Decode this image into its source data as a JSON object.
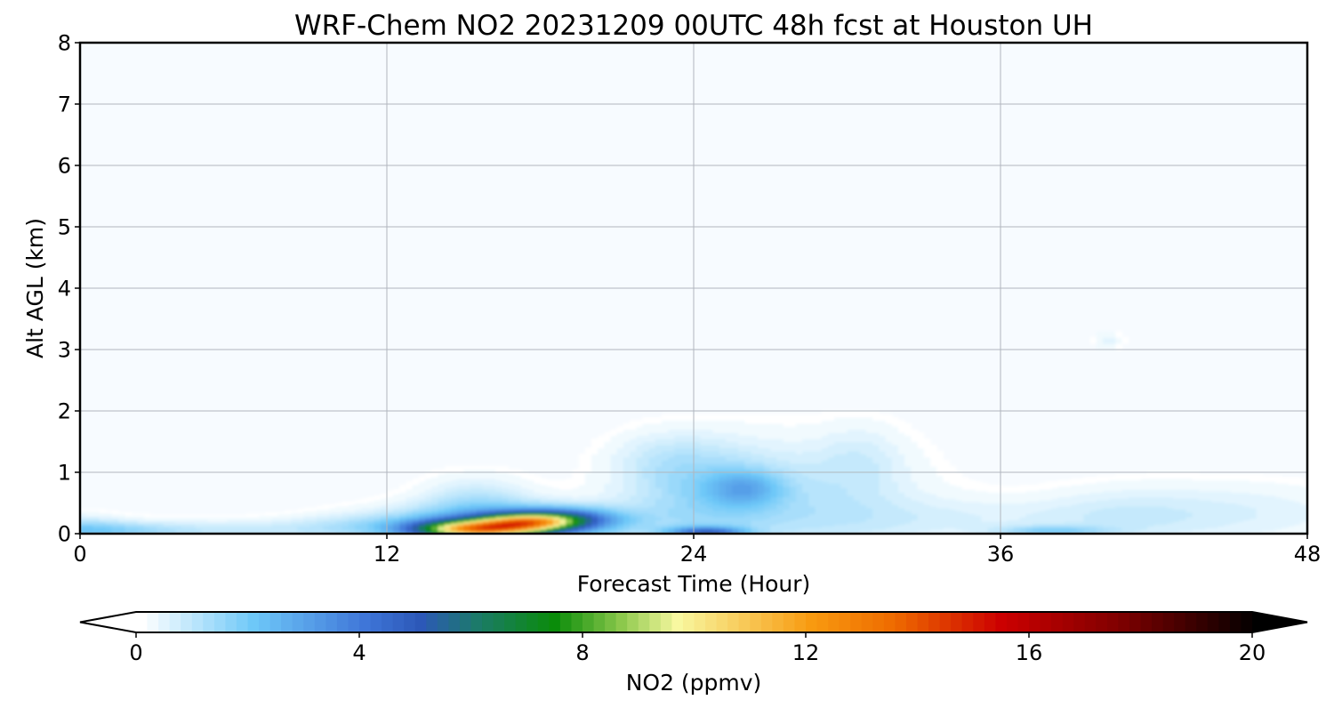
{
  "chart_data": {
    "type": "heatmap",
    "subtype": "time-height filled contour",
    "title": "WRF-Chem NO2  20231209 00UTC 48h fcst at Houston UH",
    "xlabel": "Forecast Time (Hour)",
    "ylabel": "Alt AGL (km)",
    "xlim": [
      0,
      48
    ],
    "ylim": [
      0,
      8
    ],
    "xticks": [
      0,
      12,
      24,
      36,
      48
    ],
    "yticks": [
      0,
      1,
      2,
      3,
      4,
      5,
      6,
      7,
      8
    ],
    "grid": true,
    "colorbar": {
      "label": "NO2  (ppmv)",
      "vmin": 0,
      "vmax": 20,
      "ticks": [
        0,
        4,
        8,
        12,
        16,
        20
      ],
      "extend": "both",
      "levels": 100,
      "stops": [
        {
          "v": 0,
          "c": "#ffffff"
        },
        {
          "v": 2,
          "c": "#6ec8f8"
        },
        {
          "v": 4,
          "c": "#3f76d8"
        },
        {
          "v": 5,
          "c": "#2c58b8"
        },
        {
          "v": 6,
          "c": "#1c7a6a"
        },
        {
          "v": 7.4,
          "c": "#0a8c0a"
        },
        {
          "v": 8.6,
          "c": "#8cc84c"
        },
        {
          "v": 9.6,
          "c": "#f8f8a0"
        },
        {
          "v": 12,
          "c": "#f89a10"
        },
        {
          "v": 13.5,
          "c": "#ee6a00"
        },
        {
          "v": 15.4,
          "c": "#cc0000"
        },
        {
          "v": 17.5,
          "c": "#800000"
        },
        {
          "v": 20,
          "c": "#000000"
        }
      ]
    },
    "features": [
      {
        "t": 0,
        "z": 0.05,
        "st": 2.5,
        "sz": 0.1,
        "v": 1.6
      },
      {
        "t": 0,
        "z": 0.2,
        "st": 1.2,
        "sz": 0.12,
        "v": 0.5
      },
      {
        "t": 7,
        "z": 0.06,
        "st": 5.5,
        "sz": 0.12,
        "v": 0.8
      },
      {
        "t": 11,
        "z": 0.18,
        "st": 2.0,
        "sz": 0.12,
        "v": 0.4
      },
      {
        "t": 15.5,
        "z": 0.08,
        "st": 1.6,
        "sz": 0.1,
        "v": 9.6
      },
      {
        "t": 17.5,
        "z": 0.2,
        "st": 1.3,
        "sz": 0.1,
        "v": 7.5
      },
      {
        "t": 16.5,
        "z": 0.15,
        "st": 3.2,
        "sz": 0.22,
        "v": 2.8
      },
      {
        "t": 19,
        "z": 0.25,
        "st": 1.4,
        "sz": 0.12,
        "v": 3.2
      },
      {
        "t": 15.5,
        "z": 0.5,
        "st": 1.5,
        "sz": 0.3,
        "v": 1.0
      },
      {
        "t": 24.5,
        "z": 0.65,
        "st": 2.3,
        "sz": 0.55,
        "v": 1.4
      },
      {
        "t": 26,
        "z": 0.75,
        "st": 1.0,
        "sz": 0.2,
        "v": 1.6
      },
      {
        "t": 23,
        "z": 1.25,
        "st": 1.5,
        "sz": 0.3,
        "v": 0.5
      },
      {
        "t": 24.5,
        "z": 0.03,
        "st": 1.0,
        "sz": 0.06,
        "v": 4.0
      },
      {
        "t": 29,
        "z": 0.5,
        "st": 3.0,
        "sz": 0.7,
        "v": 0.7
      },
      {
        "t": 30.5,
        "z": 1.2,
        "st": 1.2,
        "sz": 0.4,
        "v": 0.5
      },
      {
        "t": 34,
        "z": 0.25,
        "st": 5.0,
        "sz": 0.25,
        "v": 0.5
      },
      {
        "t": 38,
        "z": 0.05,
        "st": 1.5,
        "sz": 0.06,
        "v": 1.5
      },
      {
        "t": 41,
        "z": 0.3,
        "st": 2.5,
        "sz": 0.35,
        "v": 0.6
      },
      {
        "t": 46,
        "z": 0.35,
        "st": 3.0,
        "sz": 0.35,
        "v": 0.5
      },
      {
        "t": 40.2,
        "z": 3.15,
        "st": 0.4,
        "sz": 0.1,
        "v": 0.5
      }
    ]
  }
}
